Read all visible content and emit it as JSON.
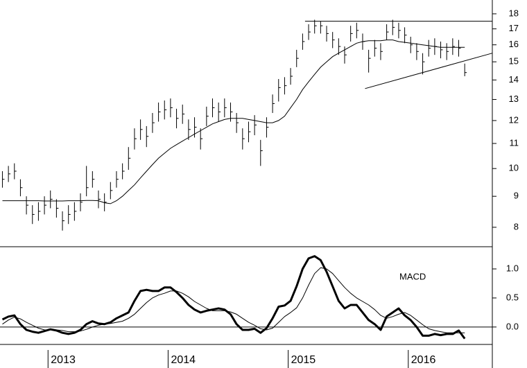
{
  "chart_data": [
    {
      "type": "ohlc",
      "log_scale": true,
      "x": [
        2012.62,
        2012.67,
        2012.72,
        2012.77,
        2012.82,
        2012.87,
        2012.92,
        2012.97,
        2013.02,
        2013.07,
        2013.12,
        2013.17,
        2013.22,
        2013.27,
        2013.32,
        2013.37,
        2013.42,
        2013.47,
        2013.52,
        2013.57,
        2013.62,
        2013.67,
        2013.72,
        2013.77,
        2013.82,
        2013.87,
        2013.92,
        2013.97,
        2014.02,
        2014.07,
        2014.12,
        2014.17,
        2014.22,
        2014.27,
        2014.32,
        2014.37,
        2014.42,
        2014.47,
        2014.52,
        2014.57,
        2014.62,
        2014.67,
        2014.72,
        2014.77,
        2014.82,
        2014.87,
        2014.92,
        2014.97,
        2015.02,
        2015.07,
        2015.12,
        2015.17,
        2015.22,
        2015.27,
        2015.32,
        2015.37,
        2015.42,
        2015.47,
        2015.52,
        2015.57,
        2015.62,
        2015.67,
        2015.72,
        2015.77,
        2015.82,
        2015.87,
        2015.92,
        2015.97,
        2016.02,
        2016.07,
        2016.12,
        2016.17,
        2016.22,
        2016.27,
        2016.32,
        2016.37,
        2016.42,
        2016.47
      ],
      "high": [
        9.9,
        10.1,
        10.2,
        9.6,
        9.0,
        8.7,
        8.8,
        9.0,
        9.2,
        8.9,
        8.5,
        8.7,
        8.8,
        9.1,
        10.1,
        9.9,
        9.2,
        9.1,
        9.5,
        9.9,
        10.2,
        10.85,
        11.65,
        12.05,
        11.75,
        12.35,
        12.85,
        12.95,
        13.05,
        12.55,
        12.75,
        12.05,
        12.15,
        11.65,
        12.65,
        13.05,
        12.85,
        13.05,
        12.85,
        12.35,
        11.65,
        11.95,
        12.25,
        11.15,
        12.15,
        13.25,
        14.05,
        14.15,
        14.65,
        15.7,
        16.7,
        17.3,
        17.6,
        17.5,
        17.2,
        16.8,
        16.4,
        15.9,
        17.2,
        17.4,
        16.7,
        15.7,
        16.3,
        16.1,
        17.3,
        17.6,
        17.4,
        17.1,
        16.5,
        16.1,
        15.5,
        16.3,
        16.4,
        16.2,
        16.1,
        16.4,
        16.3,
        14.9
      ],
      "low": [
        9.3,
        9.5,
        9.6,
        9.0,
        8.4,
        8.1,
        8.2,
        8.4,
        8.6,
        8.3,
        7.9,
        8.1,
        8.2,
        8.5,
        9.0,
        9.3,
        8.6,
        8.5,
        8.9,
        9.3,
        9.6,
        9.95,
        10.75,
        11.15,
        10.85,
        11.45,
        11.95,
        12.05,
        12.15,
        11.65,
        11.85,
        11.15,
        11.25,
        10.75,
        11.75,
        12.15,
        11.95,
        12.15,
        11.95,
        11.45,
        10.75,
        11.05,
        11.35,
        10.1,
        11.25,
        12.35,
        12.9,
        13.25,
        13.75,
        14.7,
        15.7,
        16.3,
        16.7,
        16.7,
        16.2,
        15.8,
        15.4,
        14.9,
        16.2,
        16.4,
        15.7,
        14.4,
        15.3,
        15.1,
        16.3,
        16.6,
        16.4,
        16.1,
        15.5,
        15.1,
        14.3,
        15.3,
        15.4,
        15.2,
        15.1,
        15.4,
        15.3,
        14.2
      ],
      "close": [
        9.6,
        9.8,
        9.9,
        9.3,
        8.7,
        8.4,
        8.5,
        8.7,
        8.9,
        8.6,
        8.2,
        8.4,
        8.5,
        8.8,
        9.3,
        9.6,
        8.9,
        8.8,
        9.2,
        9.6,
        9.9,
        10.4,
        11.2,
        11.6,
        11.3,
        11.9,
        12.4,
        12.5,
        12.6,
        12.1,
        12.3,
        11.6,
        11.7,
        11.2,
        12.2,
        12.6,
        12.4,
        12.6,
        12.4,
        11.9,
        11.2,
        11.5,
        11.8,
        10.7,
        11.7,
        12.8,
        13.6,
        13.7,
        14.2,
        15.2,
        16.2,
        16.8,
        17.2,
        17.2,
        16.7,
        16.3,
        15.9,
        15.4,
        16.7,
        16.9,
        16.2,
        15.2,
        15.8,
        15.6,
        16.8,
        17.1,
        16.9,
        16.6,
        16.0,
        15.6,
        15.0,
        15.8,
        15.9,
        15.7,
        15.6,
        15.9,
        15.8,
        14.4
      ],
      "moving_average": [
        8.85,
        8.85,
        8.85,
        8.85,
        8.85,
        8.85,
        8.85,
        8.84,
        8.84,
        8.84,
        8.84,
        8.85,
        8.85,
        8.85,
        8.86,
        8.86,
        8.85,
        8.78,
        8.75,
        8.85,
        9.0,
        9.2,
        9.4,
        9.65,
        9.9,
        10.15,
        10.4,
        10.6,
        10.8,
        10.95,
        11.1,
        11.25,
        11.4,
        11.55,
        11.7,
        11.85,
        11.95,
        12.05,
        12.1,
        12.1,
        12.1,
        12.05,
        12.0,
        11.95,
        11.9,
        11.9,
        12.0,
        12.2,
        12.6,
        13.0,
        13.5,
        13.9,
        14.3,
        14.7,
        15.0,
        15.3,
        15.5,
        15.7,
        15.9,
        16.1,
        16.2,
        16.25,
        16.25,
        16.25,
        16.3,
        16.3,
        16.2,
        16.15,
        16.1,
        16.05,
        16.0,
        15.95,
        15.9,
        15.85,
        15.85,
        15.85,
        15.85,
        15.85
      ],
      "trendlines": [
        {
          "x": [
            2015.14,
            2016.7
          ],
          "y": [
            17.5,
            17.5
          ]
        },
        {
          "x": [
            2015.64,
            2016.7
          ],
          "y": [
            13.55,
            15.5
          ]
        }
      ],
      "color": "#000000",
      "xlim": [
        2012.6,
        2016.7
      ],
      "xticks": [
        2013,
        2014,
        2015,
        2016
      ],
      "ylim": [
        7.45,
        18.97
      ],
      "yticks": [
        8,
        9,
        10,
        11,
        12,
        13,
        14,
        15,
        16,
        17,
        18
      ]
    },
    {
      "type": "line",
      "title": "MACD",
      "series": [
        {
          "color": "#000000",
          "width": 3,
          "values": [
            0.13,
            0.18,
            0.2,
            0.05,
            -0.05,
            -0.08,
            -0.1,
            -0.07,
            -0.04,
            -0.06,
            -0.1,
            -0.12,
            -0.1,
            -0.05,
            0.05,
            0.1,
            0.06,
            0.05,
            0.08,
            0.15,
            0.2,
            0.25,
            0.45,
            0.62,
            0.64,
            0.62,
            0.62,
            0.68,
            0.68,
            0.6,
            0.5,
            0.38,
            0.3,
            0.25,
            0.28,
            0.3,
            0.32,
            0.3,
            0.22,
            0.05,
            -0.05,
            -0.05,
            -0.03,
            -0.1,
            -0.02,
            0.15,
            0.35,
            0.37,
            0.45,
            0.7,
            1.0,
            1.18,
            1.22,
            1.15,
            0.95,
            0.7,
            0.45,
            0.32,
            0.38,
            0.38,
            0.25,
            0.12,
            0.05,
            -0.05,
            0.18,
            0.25,
            0.32,
            0.2,
            0.12,
            0.0,
            -0.15,
            -0.15,
            -0.12,
            -0.14,
            -0.12,
            -0.12,
            -0.06,
            -0.2
          ]
        },
        {
          "color": "#000000",
          "width": 1,
          "values": [
            0.05,
            0.12,
            0.17,
            0.14,
            0.08,
            0.03,
            -0.02,
            -0.05,
            -0.05,
            -0.05,
            -0.06,
            -0.08,
            -0.08,
            -0.07,
            -0.04,
            0.0,
            0.03,
            0.05,
            0.06,
            0.08,
            0.1,
            0.15,
            0.22,
            0.32,
            0.42,
            0.5,
            0.55,
            0.58,
            0.62,
            0.62,
            0.58,
            0.52,
            0.44,
            0.38,
            0.32,
            0.28,
            0.28,
            0.28,
            0.26,
            0.22,
            0.15,
            0.08,
            0.03,
            -0.03,
            -0.05,
            -0.02,
            0.08,
            0.18,
            0.25,
            0.33,
            0.5,
            0.72,
            0.92,
            1.02,
            1.0,
            0.92,
            0.8,
            0.68,
            0.58,
            0.5,
            0.44,
            0.38,
            0.3,
            0.2,
            0.15,
            0.18,
            0.22,
            0.25,
            0.2,
            0.12,
            0.04,
            -0.03,
            -0.06,
            -0.08,
            -0.1,
            -0.1,
            -0.1,
            -0.1
          ]
        }
      ],
      "ylim": [
        -0.3,
        1.37
      ],
      "yticks": [
        {
          "value": 0,
          "label": "0.0"
        },
        {
          "value": 0.5,
          "label": "0.5"
        },
        {
          "value": 1,
          "label": "1.0"
        }
      ]
    }
  ]
}
